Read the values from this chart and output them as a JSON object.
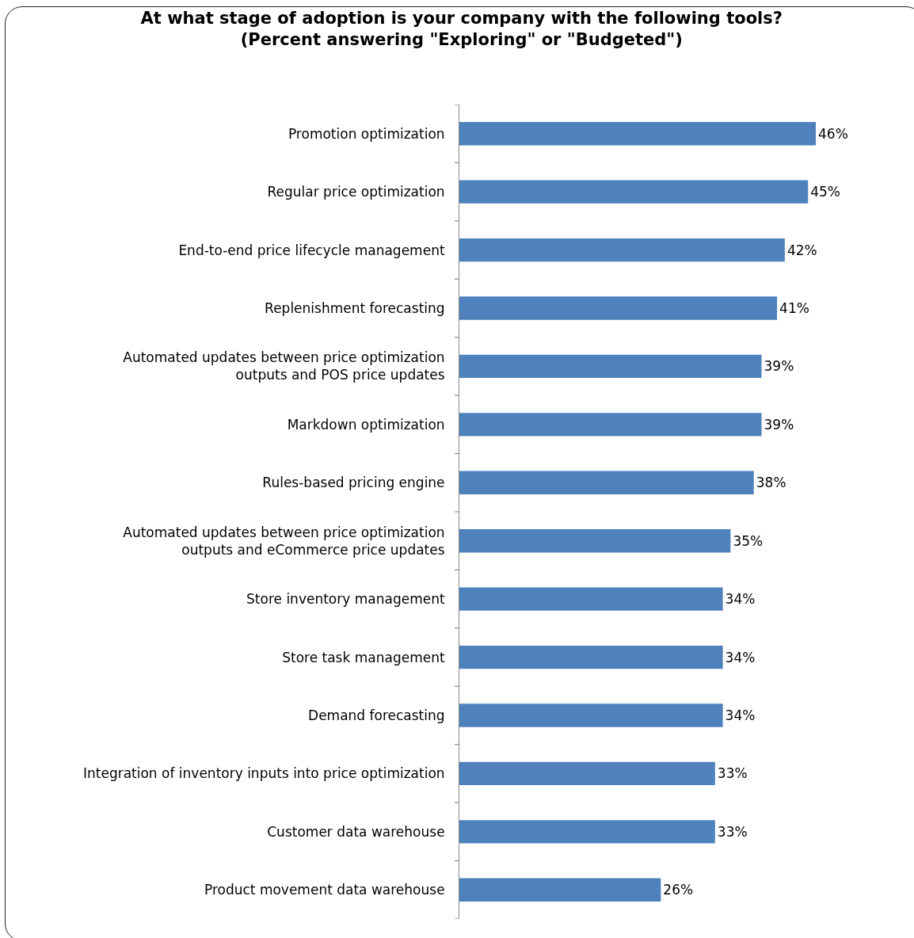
{
  "chart_data": {
    "type": "bar",
    "orientation": "horizontal",
    "title": "At what stage of adoption is your company with the following tools?\n(Percent answering \"Exploring\" or \"Budgeted\")",
    "categories": [
      "Promotion optimization",
      "Regular price optimization",
      "End-to-end price lifecycle management",
      "Replenishment forecasting",
      "Automated updates between price optimization\noutputs and POS price updates",
      "Markdown optimization",
      "Rules-based pricing engine",
      "Automated updates between price optimization\noutputs and eCommerce price updates",
      "Store inventory management",
      "Store task management",
      "Demand forecasting",
      "Integration of inventory inputs into price optimization",
      "Customer data warehouse",
      "Product movement data warehouse"
    ],
    "values": [
      46,
      45,
      42,
      41,
      39,
      39,
      38,
      35,
      34,
      34,
      34,
      33,
      33,
      26
    ],
    "value_labels": [
      "46%",
      "45%",
      "42%",
      "41%",
      "39%",
      "39%",
      "38%",
      "35%",
      "34%",
      "34%",
      "34%",
      "33%",
      "33%",
      "26%"
    ],
    "color": "#4f81bd",
    "grid": false,
    "legend": false
  }
}
